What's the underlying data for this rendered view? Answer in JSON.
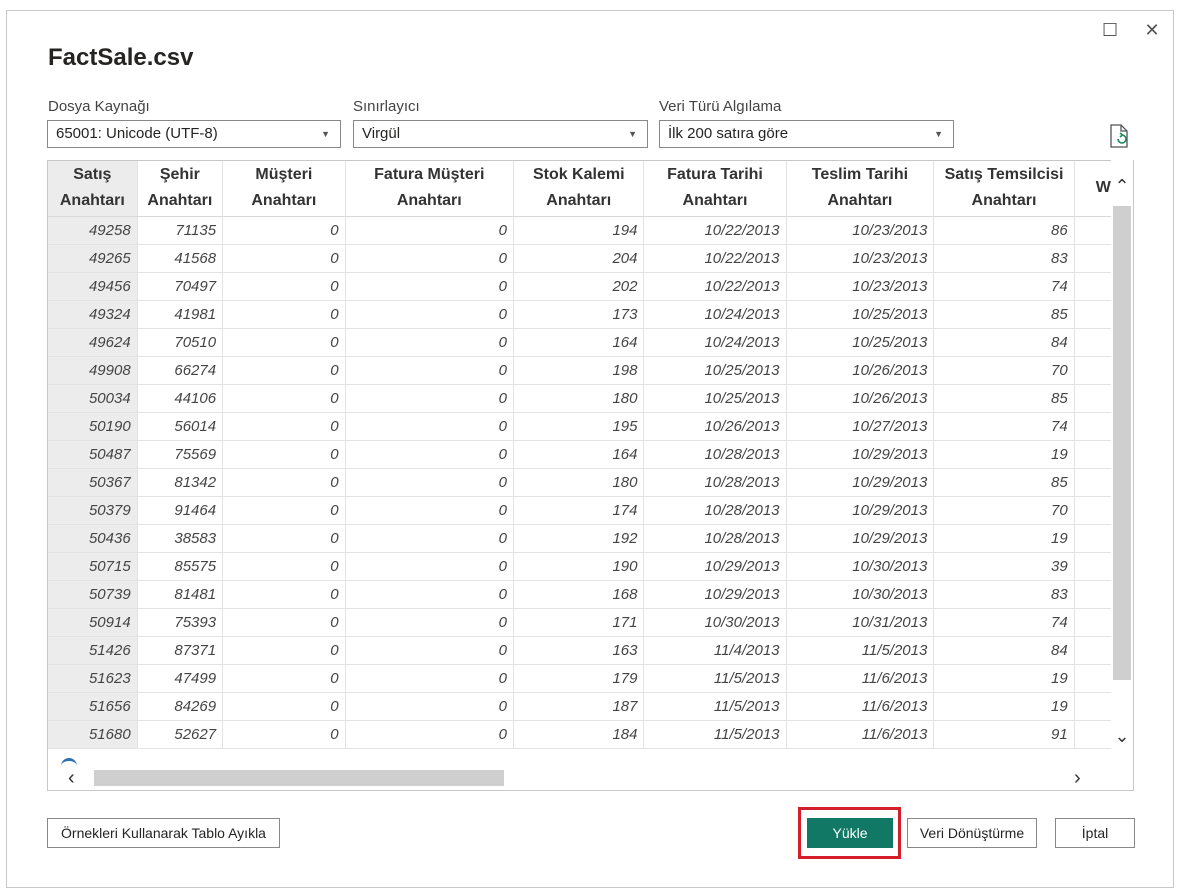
{
  "dialog": {
    "title": "FactSale.csv",
    "maximize_icon": "☐",
    "close_icon": "✕"
  },
  "options": {
    "file_origin": {
      "label": "Dosya Kaynağı",
      "value": "65001: Unicode (UTF-8)"
    },
    "delimiter": {
      "label": "Sınırlayıcı",
      "value": "Virgül"
    },
    "type_detection": {
      "label": "Veri Türü Algılama",
      "value": "İlk 200 satıra göre"
    }
  },
  "table": {
    "headers": [
      [
        "Satış",
        "Anahtarı"
      ],
      [
        "Şehir",
        "Anahtarı"
      ],
      [
        "Müşteri",
        "Anahtarı"
      ],
      [
        "Fatura Müşteri",
        "Anahtarı"
      ],
      [
        "Stok Kalemi",
        "Anahtarı"
      ],
      [
        "Fatura Tarihi",
        "Anahtarı"
      ],
      [
        "Teslim Tarihi",
        "Anahtarı"
      ],
      [
        "Satış Temsilcisi",
        "Anahtarı"
      ],
      [
        "W",
        ""
      ]
    ],
    "rows": [
      [
        "49258",
        "71135",
        "0",
        "0",
        "194",
        "10/22/2013",
        "10/23/2013",
        "86"
      ],
      [
        "49265",
        "41568",
        "0",
        "0",
        "204",
        "10/22/2013",
        "10/23/2013",
        "83"
      ],
      [
        "49456",
        "70497",
        "0",
        "0",
        "202",
        "10/22/2013",
        "10/23/2013",
        "74"
      ],
      [
        "49324",
        "41981",
        "0",
        "0",
        "173",
        "10/24/2013",
        "10/25/2013",
        "85"
      ],
      [
        "49624",
        "70510",
        "0",
        "0",
        "164",
        "10/24/2013",
        "10/25/2013",
        "84"
      ],
      [
        "49908",
        "66274",
        "0",
        "0",
        "198",
        "10/25/2013",
        "10/26/2013",
        "70"
      ],
      [
        "50034",
        "44106",
        "0",
        "0",
        "180",
        "10/25/2013",
        "10/26/2013",
        "85"
      ],
      [
        "50190",
        "56014",
        "0",
        "0",
        "195",
        "10/26/2013",
        "10/27/2013",
        "74"
      ],
      [
        "50487",
        "75569",
        "0",
        "0",
        "164",
        "10/28/2013",
        "10/29/2013",
        "19"
      ],
      [
        "50367",
        "81342",
        "0",
        "0",
        "180",
        "10/28/2013",
        "10/29/2013",
        "85"
      ],
      [
        "50379",
        "91464",
        "0",
        "0",
        "174",
        "10/28/2013",
        "10/29/2013",
        "70"
      ],
      [
        "50436",
        "38583",
        "0",
        "0",
        "192",
        "10/28/2013",
        "10/29/2013",
        "19"
      ],
      [
        "50715",
        "85575",
        "0",
        "0",
        "190",
        "10/29/2013",
        "10/30/2013",
        "39"
      ],
      [
        "50739",
        "81481",
        "0",
        "0",
        "168",
        "10/29/2013",
        "10/30/2013",
        "83"
      ],
      [
        "50914",
        "75393",
        "0",
        "0",
        "171",
        "10/30/2013",
        "10/31/2013",
        "74"
      ],
      [
        "51426",
        "87371",
        "0",
        "0",
        "163",
        "11/4/2013",
        "11/5/2013",
        "84"
      ],
      [
        "51623",
        "47499",
        "0",
        "0",
        "179",
        "11/5/2013",
        "11/6/2013",
        "19"
      ],
      [
        "51656",
        "84269",
        "0",
        "0",
        "187",
        "11/5/2013",
        "11/6/2013",
        "19"
      ],
      [
        "51680",
        "52627",
        "0",
        "0",
        "184",
        "11/5/2013",
        "11/6/2013",
        "91"
      ]
    ]
  },
  "buttons": {
    "extract": "Örnekleri Kullanarak Tablo Ayıkla",
    "load": "Yükle",
    "transform": "Veri Dönüştürme",
    "cancel": "İptal"
  },
  "colors": {
    "primary": "#117865",
    "highlight": "#d21f2a"
  },
  "icons": {
    "refresh_file": "file-refresh-icon",
    "scroll_up": "chevron-up-icon",
    "scroll_down": "chevron-down-icon",
    "scroll_left": "chevron-left-icon",
    "scroll_right": "chevron-right-icon"
  }
}
